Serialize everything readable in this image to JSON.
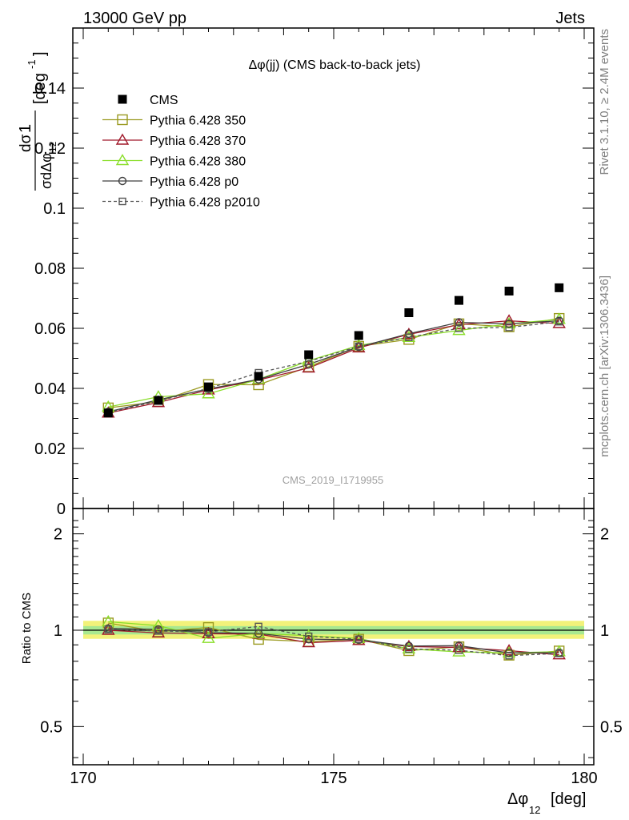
{
  "header": {
    "left": "13000 GeV pp",
    "right": "Jets"
  },
  "side_labels": {
    "rivet": "Rivet 3.1.10, ≥ 2.4M events",
    "mcplots": "mcplots.cern.ch [arXiv:1306.3436]"
  },
  "chart_data": {
    "type": "line",
    "title": "Δφ(jj) (CMS back-to-back jets)",
    "watermark": "CMS_2019_I1719955",
    "xlabel_main": "Δφ",
    "xlabel_sub": "12",
    "xlabel_unit": "[deg]",
    "ylabel_unit": "[deg",
    "ylabel_unit_exp": "-1",
    "ratio_ylabel": "Ratio to CMS",
    "xlim": [
      170,
      180
    ],
    "ylim": [
      0,
      0.16
    ],
    "ratio_ylim": [
      0.38,
      2.4
    ],
    "x_ticks": [
      "170",
      "175",
      "180"
    ],
    "y_ticks": [
      "0",
      "0.02",
      "0.04",
      "0.06",
      "0.08",
      "0.1",
      "0.12",
      "0.14"
    ],
    "ratio_y_ticks": [
      "0.5",
      "1",
      "2"
    ],
    "x": [
      170.5,
      171.5,
      172.5,
      173.5,
      174.5,
      175.5,
      176.5,
      177.5,
      178.5,
      179.5
    ],
    "data": {
      "name": "CMS",
      "values": [
        0.0318,
        0.036,
        0.0405,
        0.044,
        0.0512,
        0.0576,
        0.0652,
        0.0693,
        0.0724,
        0.0735
      ],
      "color": "#000000"
    },
    "series": [
      {
        "name": "Pythia 6.428 350",
        "marker": "square-open",
        "color": "#9a9a20",
        "dash": false,
        "values": [
          0.0335,
          0.0356,
          0.0413,
          0.0412,
          0.0472,
          0.054,
          0.0563,
          0.0615,
          0.0605,
          0.0633
        ]
      },
      {
        "name": "Pythia 6.428 370",
        "marker": "triangle-open",
        "color": "#a0182a",
        "dash": false,
        "values": [
          0.0318,
          0.0353,
          0.0395,
          0.0428,
          0.0468,
          0.0535,
          0.058,
          0.0612,
          0.0625,
          0.0616
        ]
      },
      {
        "name": "Pythia 6.428 380",
        "marker": "triangle-open",
        "color": "#8ade2a",
        "dash": false,
        "values": [
          0.0338,
          0.0372,
          0.0382,
          0.043,
          0.0492,
          0.0543,
          0.057,
          0.0593,
          0.0615,
          0.063
        ]
      },
      {
        "name": "Pythia 6.428 p0",
        "marker": "circle-open",
        "color": "#404040",
        "dash": false,
        "values": [
          0.0322,
          0.0362,
          0.0398,
          0.043,
          0.048,
          0.0538,
          0.0582,
          0.062,
          0.0615,
          0.0625
        ]
      },
      {
        "name": "Pythia 6.428 p2010",
        "marker": "square-small",
        "color": "#555555",
        "dash": true,
        "values": [
          0.032,
          0.0358,
          0.04,
          0.0452,
          0.049,
          0.054,
          0.057,
          0.06,
          0.0603,
          0.0622
        ]
      }
    ],
    "ratio_band_color": "#f2f27a",
    "ratio_inner_band_color": "#a8e890",
    "legend_position": "top-left"
  }
}
